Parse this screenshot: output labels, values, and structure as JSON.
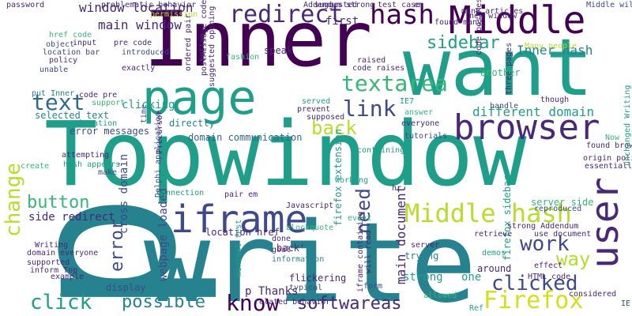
{
  "colors": {
    "background": "#ffffff",
    "dark_purple": "#440154",
    "purple": "#482878",
    "indigo": "#3e4a89",
    "blue": "#31688e",
    "teal": "#26828e",
    "sea": "#1f9e89",
    "green": "#35b779",
    "light_green": "#6ece58",
    "lime": "#b5de2b",
    "yellow": "#d0e11c"
  },
  "words": [
    {
      "text": "Top",
      "color": "sea"
    },
    {
      "text": "window",
      "color": "sea"
    },
    {
      "text": "write",
      "color": "teal"
    },
    {
      "text": "p",
      "color": "teal"
    },
    {
      "text": "Inner",
      "color": "dark_purple"
    },
    {
      "text": "want",
      "color": "sea"
    },
    {
      "text": "page",
      "color": "sea"
    },
    {
      "text": "Middle",
      "color": "dark_purple"
    },
    {
      "text": "browser",
      "color": "purple"
    },
    {
      "text": "iframe",
      "color": "indigo"
    },
    {
      "text": "user",
      "color": "purple"
    },
    {
      "text": "hash",
      "color": "dark_purple"
    },
    {
      "text": "redirect",
      "color": "purple"
    },
    {
      "text": "Middle hash",
      "color": "lime"
    },
    {
      "text": "Firefox",
      "color": "yellow"
    },
    {
      "text": "text",
      "color": "blue"
    },
    {
      "text": "link",
      "color": "indigo"
    },
    {
      "text": "know",
      "color": "dark_purple"
    },
    {
      "text": "textarea",
      "color": "green"
    },
    {
      "text": "button",
      "color": "green"
    },
    {
      "text": "click",
      "color": "sea"
    },
    {
      "text": "possible",
      "color": "teal"
    },
    {
      "text": "softwareas",
      "color": "purple"
    },
    {
      "text": "clicked",
      "color": "indigo"
    },
    {
      "text": "work",
      "color": "indigo"
    },
    {
      "text": "way",
      "color": "lime"
    },
    {
      "text": "error",
      "color": "indigo"
    },
    {
      "text": "back",
      "color": "lime"
    },
    {
      "text": "change",
      "color": "lime"
    },
    {
      "text": "need",
      "color": "indigo"
    },
    {
      "text": "sidebar",
      "color": "sea"
    },
    {
      "text": "Inner hash",
      "color": "teal"
    },
    {
      "text": "main window",
      "color": "purple"
    },
    {
      "text": "window location",
      "color": "purple"
    },
    {
      "text": "different domain",
      "color": "sea"
    },
    {
      "text": "main document",
      "color": "purple"
    },
    {
      "text": "cross domain",
      "color": "indigo"
    },
    {
      "text": "webpage loaded",
      "color": "indigo"
    },
    {
      "text": "domain communication",
      "color": "blue"
    },
    {
      "text": "directly",
      "color": "teal"
    },
    {
      "text": "clicking",
      "color": "sea"
    },
    {
      "text": "selected text",
      "color": "teal"
    },
    {
      "text": "error messages",
      "color": "indigo"
    },
    {
      "text": "p Thanks",
      "color": "purple"
    },
    {
      "text": "location href",
      "color": "purple"
    },
    {
      "text": "side redirect",
      "color": "purple"
    },
    {
      "text": "display",
      "color": "indigo"
    },
    {
      "text": "example",
      "color": "purple"
    },
    {
      "text": "first",
      "color": "purple"
    },
    {
      "text": "speak",
      "color": "purple"
    },
    {
      "text": "another",
      "color": "green"
    },
    {
      "text": "one",
      "color": "sea"
    },
    {
      "text": "strong",
      "color": "sea"
    },
    {
      "text": "trying",
      "color": "teal"
    },
    {
      "text": "around",
      "color": "purple"
    },
    {
      "text": "server side",
      "color": "green"
    },
    {
      "text": "firefox sidebar",
      "color": "sea"
    },
    {
      "text": "firefox extension",
      "color": "sea"
    },
    {
      "text": "iframe containing",
      "color": "purple"
    },
    {
      "text": "related behavior",
      "color": "purple"
    },
    {
      "text": "flickering",
      "color": "purple"
    },
    {
      "text": "typical",
      "color": "indigo"
    },
    {
      "text": "form",
      "color": "indigo"
    },
    {
      "text": "back'",
      "color": "purple"
    },
    {
      "text": "information",
      "color": "teal"
    },
    {
      "text": "problematic behavior",
      "color": "purple"
    },
    {
      "text": "permission",
      "color": "lime"
    },
    {
      "text": "password",
      "color": "purple"
    },
    {
      "text": "many articles",
      "color": "purple"
    },
    {
      "text": "new window",
      "color": "purple"
    },
    {
      "text": "Middle will",
      "color": "indigo"
    },
    {
      "text": "test case",
      "color": "purple"
    },
    {
      "text": "href code",
      "color": "green"
    },
    {
      "text": "input",
      "color": "purple"
    },
    {
      "text": "object",
      "color": "indigo"
    },
    {
      "text": "location bar",
      "color": "indigo"
    },
    {
      "text": "policy",
      "color": "purple"
    },
    {
      "text": "unable",
      "color": "indigo"
    },
    {
      "text": "put Inner",
      "color": "teal"
    },
    {
      "text": "code pre",
      "color": "purple"
    },
    {
      "text": "pre code",
      "color": "purple"
    },
    {
      "text": "introduced",
      "color": "indigo"
    },
    {
      "text": "exactly",
      "color": "purple"
    },
    {
      "text": "support",
      "color": "green"
    },
    {
      "text": "suggested",
      "color": "purple"
    },
    {
      "text": "raised",
      "color": "purple"
    },
    {
      "text": "code raises",
      "color": "purple"
    },
    {
      "text": "served",
      "color": "sea"
    },
    {
      "text": "prevent",
      "color": "purple"
    },
    {
      "text": "supposed",
      "color": "purple"
    },
    {
      "text": "IE7",
      "color": "sea"
    },
    {
      "text": "answer",
      "color": "green"
    },
    {
      "text": "everyone",
      "color": "purple"
    },
    {
      "text": "tutorials",
      "color": "indigo"
    },
    {
      "text": "containing",
      "color": "sea"
    },
    {
      "text": "Now",
      "color": "green"
    },
    {
      "text": "found browser",
      "color": "purple"
    },
    {
      "text": "origin policy",
      "color": "purple"
    },
    {
      "text": "essentially",
      "color": "purple"
    },
    {
      "text": "handle",
      "color": "indigo"
    },
    {
      "text": "though",
      "color": "purple"
    },
    {
      "text": "location",
      "color": "sea"
    },
    {
      "text": "attempting",
      "color": "purple"
    },
    {
      "text": "hash appears",
      "color": "sea"
    },
    {
      "text": "make",
      "color": "indigo"
    },
    {
      "text": "create",
      "color": "green"
    },
    {
      "text": "pair em",
      "color": "purple"
    },
    {
      "text": "working",
      "color": "sea"
    },
    {
      "text": "event",
      "color": "green"
    },
    {
      "text": "connection",
      "color": "sea"
    },
    {
      "text": "reproduced",
      "color": "indigo"
    },
    {
      "text": "strong Addendum",
      "color": "purple"
    },
    {
      "text": "use document",
      "color": "purple"
    },
    {
      "text": "retrieve",
      "color": "purple"
    },
    {
      "text": "demos",
      "color": "sea"
    },
    {
      "text": "effect",
      "color": "purple"
    },
    {
      "text": "HTML code",
      "color": "purple"
    },
    {
      "text": "considered",
      "color": "purple"
    },
    {
      "text": "IE",
      "color": "indigo"
    },
    {
      "text": "Ref",
      "color": "sea"
    },
    {
      "text": "allowed",
      "color": "green"
    },
    {
      "text": "server",
      "color": "purple"
    },
    {
      "text": "done",
      "color": "purple"
    },
    {
      "text": "goal",
      "color": "purple"
    },
    {
      "text": "blockquote",
      "color": "green"
    },
    {
      "text": "Writing",
      "color": "purple"
    },
    {
      "text": "domain everyone",
      "color": "purple"
    },
    {
      "text": "supported",
      "color": "purple"
    },
    {
      "text": "inform Top",
      "color": "purple"
    },
    {
      "text": "unchanged Writing",
      "color": "sea"
    },
    {
      "text": "Many people",
      "color": "lime"
    },
    {
      "text": "Addendum strong",
      "color": "purple"
    },
    {
      "text": "Delphi application",
      "color": "indigo"
    },
    {
      "text": "ordered pair",
      "color": "purple"
    },
    {
      "text": "Precursor",
      "color": "purple"
    },
    {
      "text": "time",
      "color": "indigo"
    },
    {
      "text": "bottom",
      "color": "purple"
    },
    {
      "text": "postMessage code",
      "color": "purple"
    },
    {
      "text": "code postMessage",
      "color": "purple"
    },
    {
      "text": "suggested opening",
      "color": "purple"
    },
    {
      "text": "three pages",
      "color": "purple"
    },
    {
      "text": "minimal test",
      "color": "sea"
    },
    {
      "text": "will read",
      "color": "purple"
    },
    {
      "text": "Javascript",
      "color": "purple"
    },
    {
      "text": "fashion",
      "color": "green"
    },
    {
      "text": "found many",
      "color": "purple"
    },
    {
      "text": "hr",
      "color": "purple"
    },
    {
      "text": "em",
      "color": "purple"
    }
  ]
}
